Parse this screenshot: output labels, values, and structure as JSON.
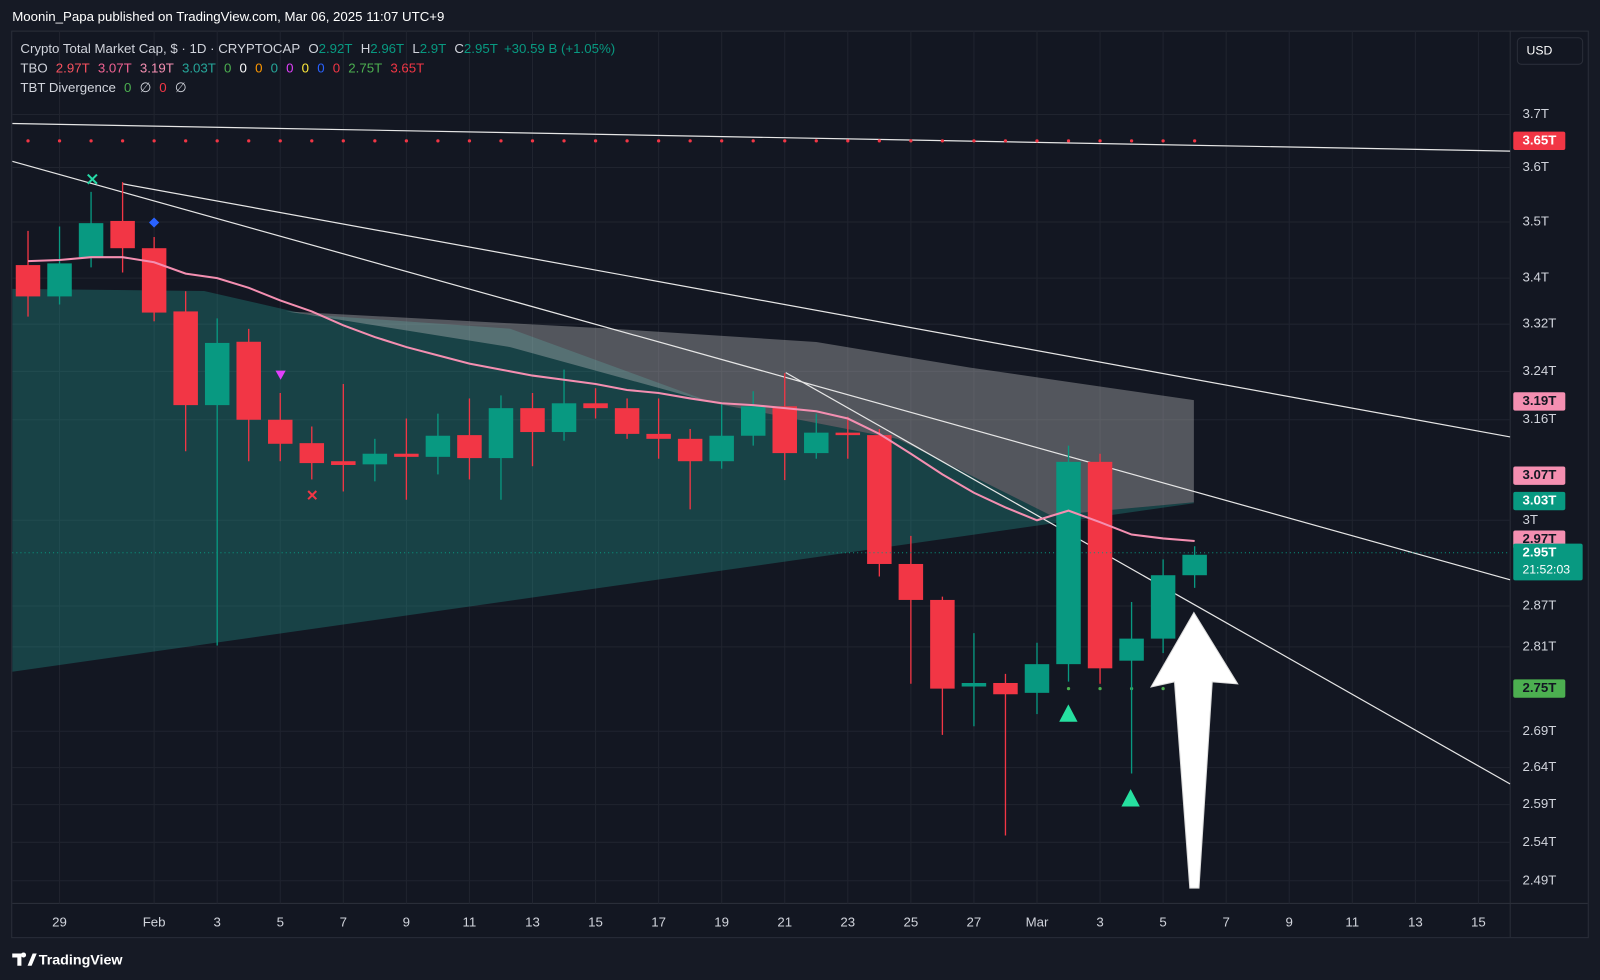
{
  "header": {
    "text": "Moonin_Papa published on TradingView.com, Mar 06, 2025 11:07 UTC+9"
  },
  "legend": {
    "symbol": "Crypto Total Market Cap, $ · 1D · CRYPTOCAP",
    "ohlc": [
      {
        "key": "O",
        "value": "2.92T"
      },
      {
        "key": "H",
        "value": "2.96T"
      },
      {
        "key": "L",
        "value": "2.9T"
      },
      {
        "key": "C",
        "value": "2.95T"
      }
    ],
    "change": "+30.59 B (+1.05%)",
    "change_color": "#089981",
    "indicators": [
      {
        "name": "TBO",
        "items": [
          {
            "text": "2.97T",
            "color": "#f7525f"
          },
          {
            "text": "3.07T",
            "color": "#f06292"
          },
          {
            "text": "3.19T",
            "color": "#f48fb1"
          },
          {
            "text": "3.03T",
            "color": "#26a69a"
          },
          {
            "text": "0",
            "color": "#4caf50"
          },
          {
            "text": "0",
            "color": "#ffffff"
          },
          {
            "text": "0",
            "color": "#ff9800"
          },
          {
            "text": "0",
            "color": "#26a69a"
          },
          {
            "text": "0",
            "color": "#e040fb"
          },
          {
            "text": "0",
            "color": "#ffeb3b"
          },
          {
            "text": "0",
            "color": "#2962ff"
          },
          {
            "text": "0",
            "color": "#f23645"
          },
          {
            "text": "2.75T",
            "color": "#4caf50"
          },
          {
            "text": "3.65T",
            "color": "#f23645"
          }
        ]
      },
      {
        "name": "TBT Divergence",
        "items": [
          {
            "text": "0",
            "color": "#4caf50"
          },
          {
            "text": "∅",
            "color": "#d1d4dc"
          },
          {
            "text": "0",
            "color": "#f23645"
          },
          {
            "text": "∅",
            "color": "#d1d4dc"
          }
        ]
      }
    ]
  },
  "currency": "USD",
  "footer": {
    "brand": "TradingView"
  },
  "chart_data": {
    "type": "candlestick",
    "log_scale": true,
    "grid": true,
    "categories": [
      null,
      "29",
      null,
      null,
      "Feb",
      null,
      "3",
      null,
      "5",
      null,
      "7",
      null,
      "9",
      null,
      "11",
      null,
      "13",
      null,
      "15",
      null,
      "17",
      null,
      "19",
      null,
      "21",
      null,
      "23",
      null,
      "25",
      null,
      "27",
      null,
      "Mar",
      null,
      "3",
      null,
      "5",
      null,
      "7",
      null,
      "9",
      null,
      "11",
      null,
      "13",
      null,
      "15",
      null
    ],
    "open": [
      3.423,
      3.368,
      3.437,
      3.502,
      3.453,
      3.342,
      3.184,
      3.29,
      3.16,
      3.122,
      3.093,
      3.088,
      3.105,
      3.1,
      3.135,
      3.098,
      3.179,
      3.14,
      3.187,
      3.179,
      3.137,
      3.129,
      3.093,
      3.134,
      3.182,
      3.106,
      3.139,
      3.135,
      2.933,
      2.879,
      2.753,
      2.758,
      2.744,
      2.785,
      3.092,
      2.79,
      2.822,
      2.916,
      null,
      null,
      null,
      null,
      null,
      null,
      null,
      null,
      null,
      null
    ],
    "high": [
      3.484,
      3.492,
      3.555,
      3.573,
      3.473,
      3.377,
      3.33,
      3.312,
      3.204,
      3.149,
      3.219,
      3.129,
      3.162,
      3.17,
      3.195,
      3.2,
      3.204,
      3.243,
      3.212,
      3.195,
      3.195,
      3.145,
      3.187,
      3.207,
      3.237,
      3.17,
      3.165,
      3.145,
      2.976,
      2.884,
      2.83,
      2.771,
      2.816,
      3.118,
      3.105,
      2.876,
      2.94,
      2.96,
      null,
      null,
      null,
      null,
      null,
      null,
      null,
      null,
      null,
      null
    ],
    "low": [
      3.333,
      3.354,
      3.419,
      3.41,
      3.325,
      3.109,
      2.812,
      3.093,
      3.093,
      3.064,
      3.045,
      3.061,
      3.032,
      3.072,
      3.064,
      3.032,
      3.085,
      3.126,
      3.162,
      3.129,
      3.097,
      3.017,
      3.081,
      3.118,
      3.063,
      3.097,
      3.097,
      2.914,
      2.757,
      2.685,
      2.697,
      2.549,
      2.714,
      2.76,
      2.757,
      2.632,
      2.801,
      2.897,
      null,
      null,
      null,
      null,
      null,
      null,
      null,
      null,
      null,
      null
    ],
    "close": [
      3.368,
      3.426,
      3.498,
      3.453,
      3.34,
      3.184,
      3.288,
      3.16,
      3.121,
      3.09,
      3.087,
      3.105,
      3.1,
      3.134,
      3.098,
      3.179,
      3.14,
      3.187,
      3.179,
      3.137,
      3.129,
      3.093,
      3.134,
      3.182,
      3.106,
      3.139,
      3.135,
      2.933,
      2.879,
      2.75,
      2.758,
      2.742,
      2.785,
      3.092,
      2.779,
      2.822,
      2.916,
      2.947,
      null,
      null,
      null,
      null,
      null,
      null,
      null,
      null,
      null,
      null
    ],
    "up_color": "#089981",
    "down_color": "#f23645",
    "moving_average": {
      "color": "#f48fb1",
      "values": [
        3.43,
        3.432,
        3.437,
        3.437,
        3.428,
        3.408,
        3.4,
        3.383,
        3.361,
        3.342,
        3.318,
        3.298,
        3.281,
        3.267,
        3.253,
        3.243,
        3.233,
        3.226,
        3.219,
        3.209,
        3.204,
        3.195,
        3.187,
        3.184,
        3.179,
        3.174,
        3.162,
        3.137,
        3.105,
        3.072,
        3.043,
        3.02,
        3.0,
        3.015,
        2.997,
        2.978,
        2.972,
        2.968,
        null,
        null,
        null,
        null,
        null,
        null,
        null,
        null,
        null,
        null
      ]
    },
    "ylim": [
      2.461,
      3.864
    ],
    "yticks": [
      {
        "value": 3.7,
        "label": "3.7T"
      },
      {
        "value": 3.6,
        "label": "3.6T"
      },
      {
        "value": 3.5,
        "label": "3.5T"
      },
      {
        "value": 3.4,
        "label": "3.4T"
      },
      {
        "value": 3.32,
        "label": "3.32T"
      },
      {
        "value": 3.24,
        "label": "3.24T"
      },
      {
        "value": 3.16,
        "label": "3.16T"
      },
      {
        "value": 3,
        "label": "3T"
      },
      {
        "value": 2.87,
        "label": "2.87T"
      },
      {
        "value": 2.81,
        "label": "2.81T"
      },
      {
        "value": 2.69,
        "label": "2.69T"
      },
      {
        "value": 2.64,
        "label": "2.64T"
      },
      {
        "value": 2.59,
        "label": "2.59T"
      },
      {
        "value": 2.54,
        "label": "2.54T"
      },
      {
        "value": 2.49,
        "label": "2.49T"
      }
    ],
    "price_labels": [
      {
        "value": 3.65,
        "label": "3.65T",
        "color": "#f23645",
        "text_color": "#ffffff"
      },
      {
        "value": 3.19,
        "label": "3.19T",
        "color": "#f48fb1",
        "text_color": "#131722"
      },
      {
        "value": 3.07,
        "label": "3.07T",
        "color": "#f48fb1",
        "text_color": "#131722"
      },
      {
        "value": 3.03,
        "label": "3.03T",
        "color": "#089981",
        "text_color": "#ffffff"
      },
      {
        "value": 2.97,
        "label": "2.97T",
        "color": "#f48fb1",
        "text_color": "#131722"
      },
      {
        "value": 2.95,
        "label": "2.95T",
        "countdown": "21:52:03",
        "color": "#089981",
        "text_color": "#ffffff"
      },
      {
        "value": 2.75,
        "label": "2.75T",
        "color": "#4caf50",
        "text_color": "#131722"
      }
    ]
  }
}
